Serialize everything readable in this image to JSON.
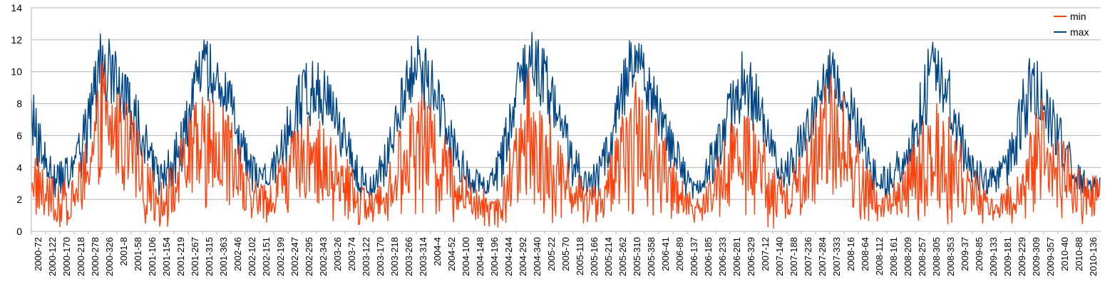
{
  "chart_data": {
    "type": "line",
    "title": "",
    "xlabel": "",
    "ylabel": "",
    "ylim": [
      0,
      14
    ],
    "yticks": [
      0,
      2,
      4,
      6,
      8,
      10,
      12,
      14
    ],
    "grid": true,
    "legend_position": "top-right",
    "x_tick_labels": [
      "2000-72",
      "2000-122",
      "2000-170",
      "2000-218",
      "2000-278",
      "2000-326",
      "2001-8",
      "2001-58",
      "2001-106",
      "2001-154",
      "2001-219",
      "2001-267",
      "2001-315",
      "2001-363",
      "2002-46",
      "2002-102",
      "2002-151",
      "2002-199",
      "2002-247",
      "2002-295",
      "2002-343",
      "2003-26",
      "2003-74",
      "2003-122",
      "2003-170",
      "2003-218",
      "2003-266",
      "2003-314",
      "2004-4",
      "2004-52",
      "2004-100",
      "2004-148",
      "2004-196",
      "2004-244",
      "2004-292",
      "2004-340",
      "2005-22",
      "2005-70",
      "2005-118",
      "2005-166",
      "2005-214",
      "2005-262",
      "2005-310",
      "2005-358",
      "2006-41",
      "2006-89",
      "2006-137",
      "2006-185",
      "2006-233",
      "2006-281",
      "2006-329",
      "2007-12",
      "2007-140",
      "2007-188",
      "2007-236",
      "2007-284",
      "2007-333",
      "2008-16",
      "2008-64",
      "2008-112",
      "2008-161",
      "2008-209",
      "2008-257",
      "2008-305",
      "2008-353",
      "2009-37",
      "2009-85",
      "2009-133",
      "2009-181",
      "2009-229",
      "2009-309",
      "2009-357",
      "2010-40",
      "2010-88",
      "2010-136"
    ],
    "series": [
      {
        "name": "min",
        "color": "#ff420e",
        "envelope": [
          {
            "x": 0,
            "lo": 0.5,
            "hi": 6.5
          },
          {
            "x": 1,
            "lo": 0.2,
            "hi": 4.0
          },
          {
            "x": 2,
            "lo": 0.0,
            "hi": 3.2
          },
          {
            "x": 3,
            "lo": 0.3,
            "hi": 3.5
          },
          {
            "x": 4,
            "lo": 1.5,
            "hi": 6.5
          },
          {
            "x": 5,
            "lo": 2.0,
            "hi": 11.0
          },
          {
            "x": 6,
            "lo": 2.0,
            "hi": 9.0
          },
          {
            "x": 7,
            "lo": 1.5,
            "hi": 7.5
          },
          {
            "x": 8,
            "lo": 0.5,
            "hi": 5.0
          },
          {
            "x": 9,
            "lo": 0.3,
            "hi": 3.0
          },
          {
            "x": 10,
            "lo": 0.3,
            "hi": 4.5
          },
          {
            "x": 11,
            "lo": 0.5,
            "hi": 7.5
          },
          {
            "x": 12,
            "lo": 1.0,
            "hi": 10.0
          },
          {
            "x": 13,
            "lo": 1.0,
            "hi": 9.0
          },
          {
            "x": 14,
            "lo": 1.0,
            "hi": 7.5
          },
          {
            "x": 15,
            "lo": 0.5,
            "hi": 4.0
          },
          {
            "x": 16,
            "lo": 0.5,
            "hi": 3.0
          },
          {
            "x": 17,
            "lo": 0.5,
            "hi": 3.5
          },
          {
            "x": 18,
            "lo": 1.0,
            "hi": 6.0
          },
          {
            "x": 19,
            "lo": 1.5,
            "hi": 7.0
          },
          {
            "x": 20,
            "lo": 1.0,
            "hi": 7.5
          },
          {
            "x": 21,
            "lo": 0.5,
            "hi": 6.0
          },
          {
            "x": 22,
            "lo": 0.5,
            "hi": 5.0
          },
          {
            "x": 23,
            "lo": 0.2,
            "hi": 3.0
          },
          {
            "x": 24,
            "lo": 0.3,
            "hi": 2.5
          },
          {
            "x": 25,
            "lo": 0.5,
            "hi": 4.0
          },
          {
            "x": 26,
            "lo": 1.0,
            "hi": 7.0
          },
          {
            "x": 27,
            "lo": 1.0,
            "hi": 10.0
          },
          {
            "x": 28,
            "lo": 1.0,
            "hi": 8.0
          },
          {
            "x": 29,
            "lo": 0.5,
            "hi": 6.5
          },
          {
            "x": 30,
            "lo": 0.5,
            "hi": 4.0
          },
          {
            "x": 31,
            "lo": 0.5,
            "hi": 3.0
          },
          {
            "x": 32,
            "lo": 0.3,
            "hi": 2.5
          },
          {
            "x": 33,
            "lo": 0.0,
            "hi": 3.0
          },
          {
            "x": 34,
            "lo": 1.0,
            "hi": 7.0
          },
          {
            "x": 35,
            "lo": 1.0,
            "hi": 10.5
          },
          {
            "x": 36,
            "lo": 0.5,
            "hi": 9.0
          },
          {
            "x": 37,
            "lo": 0.5,
            "hi": 6.0
          },
          {
            "x": 38,
            "lo": 0.5,
            "hi": 4.0
          },
          {
            "x": 39,
            "lo": 0.5,
            "hi": 3.0
          },
          {
            "x": 40,
            "lo": 0.3,
            "hi": 3.0
          },
          {
            "x": 41,
            "lo": 0.5,
            "hi": 6.0
          },
          {
            "x": 42,
            "lo": 1.0,
            "hi": 10.0
          },
          {
            "x": 43,
            "lo": 1.0,
            "hi": 9.5
          },
          {
            "x": 44,
            "lo": 1.0,
            "hi": 7.0
          },
          {
            "x": 45,
            "lo": 0.5,
            "hi": 4.5
          },
          {
            "x": 46,
            "lo": 0.5,
            "hi": 2.5
          },
          {
            "x": 47,
            "lo": 0.5,
            "hi": 2.5
          },
          {
            "x": 48,
            "lo": 0.8,
            "hi": 4.5
          },
          {
            "x": 49,
            "lo": 1.0,
            "hi": 7.0
          },
          {
            "x": 50,
            "lo": 1.0,
            "hi": 8.0
          },
          {
            "x": 51,
            "lo": 0.5,
            "hi": 7.0
          },
          {
            "x": 52,
            "lo": 0.0,
            "hi": 4.0
          },
          {
            "x": 53,
            "lo": 0.0,
            "hi": 3.5
          },
          {
            "x": 54,
            "lo": 0.5,
            "hi": 5.0
          },
          {
            "x": 55,
            "lo": 1.0,
            "hi": 9.0
          },
          {
            "x": 56,
            "lo": 0.5,
            "hi": 10.0
          },
          {
            "x": 57,
            "lo": 1.0,
            "hi": 8.5
          },
          {
            "x": 58,
            "lo": 0.5,
            "hi": 6.0
          },
          {
            "x": 59,
            "lo": 0.5,
            "hi": 3.5
          },
          {
            "x": 60,
            "lo": 0.5,
            "hi": 2.5
          },
          {
            "x": 61,
            "lo": 0.5,
            "hi": 4.0
          },
          {
            "x": 62,
            "lo": 0.5,
            "hi": 6.0
          },
          {
            "x": 63,
            "lo": 0.5,
            "hi": 8.0
          },
          {
            "x": 64,
            "lo": 0.0,
            "hi": 9.0
          },
          {
            "x": 65,
            "lo": 0.0,
            "hi": 6.5
          },
          {
            "x": 66,
            "lo": 0.5,
            "hi": 4.0
          },
          {
            "x": 67,
            "lo": 0.5,
            "hi": 3.0
          },
          {
            "x": 68,
            "lo": 0.5,
            "hi": 2.5
          },
          {
            "x": 69,
            "lo": 0.5,
            "hi": 3.5
          },
          {
            "x": 70,
            "lo": 0.5,
            "hi": 7.0
          },
          {
            "x": 71,
            "lo": 0.5,
            "hi": 8.5
          },
          {
            "x": 72,
            "lo": 0.0,
            "hi": 7.0
          },
          {
            "x": 73,
            "lo": 0.3,
            "hi": 5.0
          },
          {
            "x": 74,
            "lo": 0.2,
            "hi": 3.5
          }
        ]
      },
      {
        "name": "max",
        "color": "#004586",
        "envelope": [
          {
            "x": 0,
            "lo": 3.5,
            "hi": 9.7
          },
          {
            "x": 1,
            "lo": 2.5,
            "hi": 6.0
          },
          {
            "x": 2,
            "lo": 1.8,
            "hi": 4.5
          },
          {
            "x": 3,
            "lo": 2.5,
            "hi": 5.0
          },
          {
            "x": 4,
            "lo": 4.0,
            "hi": 8.5
          },
          {
            "x": 5,
            "lo": 8.0,
            "hi": 13.7
          },
          {
            "x": 6,
            "lo": 7.0,
            "hi": 11.0
          },
          {
            "x": 7,
            "lo": 5.5,
            "hi": 9.5
          },
          {
            "x": 8,
            "lo": 3.5,
            "hi": 7.0
          },
          {
            "x": 9,
            "lo": 2.0,
            "hi": 4.0
          },
          {
            "x": 10,
            "lo": 2.5,
            "hi": 6.0
          },
          {
            "x": 11,
            "lo": 4.5,
            "hi": 9.0
          },
          {
            "x": 12,
            "lo": 8.5,
            "hi": 12.7
          },
          {
            "x": 13,
            "lo": 7.5,
            "hi": 11.5
          },
          {
            "x": 14,
            "lo": 6.0,
            "hi": 9.5
          },
          {
            "x": 15,
            "lo": 3.0,
            "hi": 6.0
          },
          {
            "x": 16,
            "lo": 2.0,
            "hi": 4.0
          },
          {
            "x": 17,
            "lo": 2.5,
            "hi": 5.0
          },
          {
            "x": 18,
            "lo": 4.0,
            "hi": 8.0
          },
          {
            "x": 19,
            "lo": 6.0,
            "hi": 10.5
          },
          {
            "x": 20,
            "lo": 6.5,
            "hi": 11.0
          },
          {
            "x": 21,
            "lo": 5.0,
            "hi": 9.5
          },
          {
            "x": 22,
            "lo": 3.5,
            "hi": 7.0
          },
          {
            "x": 23,
            "lo": 1.8,
            "hi": 4.5
          },
          {
            "x": 24,
            "lo": 2.0,
            "hi": 4.0
          },
          {
            "x": 25,
            "lo": 3.0,
            "hi": 6.0
          },
          {
            "x": 26,
            "lo": 6.0,
            "hi": 10.0
          },
          {
            "x": 27,
            "lo": 8.0,
            "hi": 12.4
          },
          {
            "x": 28,
            "lo": 6.5,
            "hi": 11.0
          },
          {
            "x": 29,
            "lo": 4.5,
            "hi": 8.5
          },
          {
            "x": 30,
            "lo": 2.5,
            "hi": 5.5
          },
          {
            "x": 31,
            "lo": 2.0,
            "hi": 4.0
          },
          {
            "x": 32,
            "lo": 2.0,
            "hi": 3.5
          },
          {
            "x": 33,
            "lo": 2.5,
            "hi": 6.0
          },
          {
            "x": 34,
            "lo": 6.0,
            "hi": 10.5
          },
          {
            "x": 35,
            "lo": 8.0,
            "hi": 12.9
          },
          {
            "x": 36,
            "lo": 7.0,
            "hi": 11.5
          },
          {
            "x": 37,
            "lo": 5.0,
            "hi": 9.0
          },
          {
            "x": 38,
            "lo": 2.5,
            "hi": 5.5
          },
          {
            "x": 39,
            "lo": 2.0,
            "hi": 4.0
          },
          {
            "x": 40,
            "lo": 2.0,
            "hi": 5.0
          },
          {
            "x": 41,
            "lo": 4.5,
            "hi": 9.0
          },
          {
            "x": 42,
            "lo": 8.5,
            "hi": 12.2
          },
          {
            "x": 43,
            "lo": 8.0,
            "hi": 12.0
          },
          {
            "x": 44,
            "lo": 5.5,
            "hi": 9.0
          },
          {
            "x": 45,
            "lo": 3.5,
            "hi": 6.5
          },
          {
            "x": 46,
            "lo": 2.0,
            "hi": 4.0
          },
          {
            "x": 47,
            "lo": 2.0,
            "hi": 4.0
          },
          {
            "x": 48,
            "lo": 3.0,
            "hi": 6.5
          },
          {
            "x": 49,
            "lo": 5.5,
            "hi": 9.5
          },
          {
            "x": 50,
            "lo": 7.0,
            "hi": 11.9
          },
          {
            "x": 51,
            "lo": 5.0,
            "hi": 9.5
          },
          {
            "x": 52,
            "lo": 3.0,
            "hi": 6.0
          },
          {
            "x": 53,
            "lo": 2.0,
            "hi": 5.0
          },
          {
            "x": 54,
            "lo": 3.5,
            "hi": 7.0
          },
          {
            "x": 55,
            "lo": 6.0,
            "hi": 9.5
          },
          {
            "x": 56,
            "lo": 8.0,
            "hi": 11.7
          },
          {
            "x": 57,
            "lo": 6.5,
            "hi": 10.0
          },
          {
            "x": 58,
            "lo": 4.5,
            "hi": 8.0
          },
          {
            "x": 59,
            "lo": 2.5,
            "hi": 5.0
          },
          {
            "x": 60,
            "lo": 2.0,
            "hi": 4.0
          },
          {
            "x": 61,
            "lo": 2.5,
            "hi": 5.5
          },
          {
            "x": 62,
            "lo": 4.0,
            "hi": 8.0
          },
          {
            "x": 63,
            "lo": 7.0,
            "hi": 12.3
          },
          {
            "x": 64,
            "lo": 6.5,
            "hi": 11.5
          },
          {
            "x": 65,
            "lo": 4.5,
            "hi": 8.0
          },
          {
            "x": 66,
            "lo": 2.5,
            "hi": 5.0
          },
          {
            "x": 67,
            "lo": 2.0,
            "hi": 4.0
          },
          {
            "x": 68,
            "lo": 2.0,
            "hi": 4.5
          },
          {
            "x": 69,
            "lo": 3.5,
            "hi": 7.0
          },
          {
            "x": 70,
            "lo": 6.0,
            "hi": 12.0
          },
          {
            "x": 71,
            "lo": 6.0,
            "hi": 10.0
          },
          {
            "x": 72,
            "lo": 3.5,
            "hi": 7.5
          },
          {
            "x": 73,
            "lo": 2.5,
            "hi": 5.5
          },
          {
            "x": 74,
            "lo": 2.0,
            "hi": 3.5
          }
        ]
      }
    ]
  }
}
